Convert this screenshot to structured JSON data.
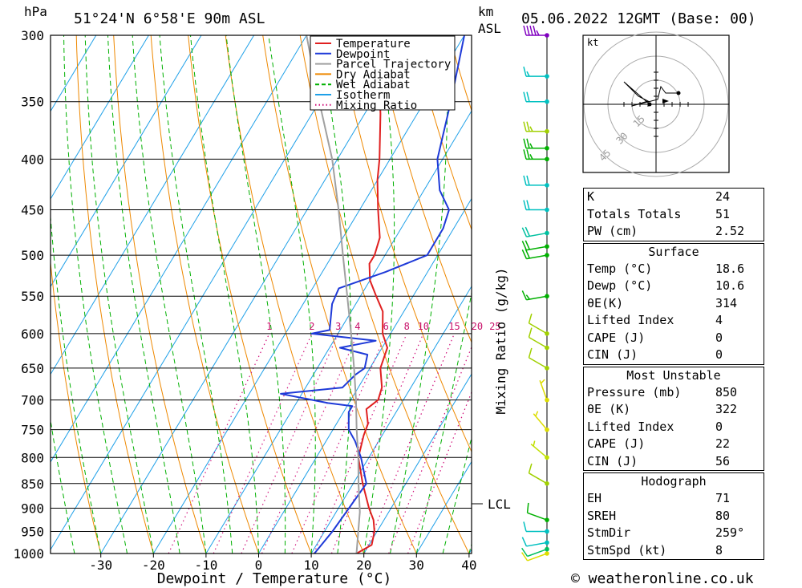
{
  "header": {
    "location": "51°24'N  6°58'E  90m  ASL",
    "datetime": "05.06.2022  12GMT  (Base: 00)",
    "hpa_label": "hPa",
    "km_label": "km",
    "asl_label": "ASL"
  },
  "footer": {
    "credit": "© weatheronline.co.uk"
  },
  "chart_data": {
    "type": "line",
    "subtype": "skew-t log-p",
    "xlabel": "Dewpoint / Temperature (°C)",
    "ylabel": "hPa",
    "right_label": "Mixing Ratio (g/kg)",
    "x_ticks": [
      -30,
      -20,
      -10,
      0,
      10,
      20,
      30,
      40
    ],
    "pressure_levels": [
      300,
      350,
      400,
      450,
      500,
      550,
      600,
      650,
      700,
      750,
      800,
      850,
      900,
      950,
      1000
    ],
    "mixing_ratio_labels": [
      "1",
      "2",
      "3",
      "4",
      "6",
      "8",
      "10",
      "15",
      "20",
      "25"
    ],
    "lcl_label": "LCL",
    "lcl_pressure": 908,
    "legend": [
      {
        "name": "Temperature",
        "color": "#e02020",
        "style": "solid"
      },
      {
        "name": "Dewpoint",
        "color": "#1e3ad8",
        "style": "solid"
      },
      {
        "name": "Parcel Trajectory",
        "color": "#a0a0a0",
        "style": "solid"
      },
      {
        "name": "Dry Adiabat",
        "color": "#ee8800",
        "style": "solid"
      },
      {
        "name": "Wet Adiabat",
        "color": "#00b000",
        "style": "dashed"
      },
      {
        "name": "Isotherm",
        "color": "#1ea0e8",
        "style": "solid"
      },
      {
        "name": "Mixing Ratio",
        "color": "#d0107a",
        "style": "dotted"
      }
    ],
    "series": [
      {
        "name": "Temperature",
        "color": "#e02020",
        "points": [
          [
            1000,
            18.6
          ],
          [
            980,
            20.5
          ],
          [
            950,
            19.5
          ],
          [
            925,
            18
          ],
          [
            900,
            15.8
          ],
          [
            850,
            11.8
          ],
          [
            800,
            8
          ],
          [
            760,
            6.5
          ],
          [
            740,
            6
          ],
          [
            715,
            4
          ],
          [
            700,
            5.2
          ],
          [
            680,
            4.5
          ],
          [
            650,
            2
          ],
          [
            620,
            1
          ],
          [
            600,
            -1.5
          ],
          [
            570,
            -4
          ],
          [
            550,
            -7
          ],
          [
            530,
            -10
          ],
          [
            510,
            -12
          ],
          [
            500,
            -12
          ],
          [
            480,
            -13
          ],
          [
            450,
            -16.5
          ],
          [
            420,
            -20
          ],
          [
            400,
            -22
          ],
          [
            360,
            -27
          ],
          [
            340,
            -30
          ],
          [
            300,
            -36
          ]
        ]
      },
      {
        "name": "Dewpoint",
        "color": "#1e3ad8",
        "points": [
          [
            1000,
            10.6
          ],
          [
            950,
            11.5
          ],
          [
            900,
            12
          ],
          [
            850,
            12.5
          ],
          [
            800,
            8.5
          ],
          [
            770,
            5.5
          ],
          [
            750,
            3
          ],
          [
            720,
            1
          ],
          [
            710,
            1
          ],
          [
            705,
            -4
          ],
          [
            690,
            -14
          ],
          [
            680,
            -3
          ],
          [
            660,
            -2
          ],
          [
            650,
            -1
          ],
          [
            630,
            -2
          ],
          [
            620,
            -8
          ],
          [
            610,
            -2
          ],
          [
            600,
            -15
          ],
          [
            595,
            -12
          ],
          [
            560,
            -14.5
          ],
          [
            540,
            -15
          ],
          [
            520,
            -8
          ],
          [
            500,
            -2
          ],
          [
            470,
            -2
          ],
          [
            450,
            -3
          ],
          [
            430,
            -7
          ],
          [
            400,
            -11
          ],
          [
            350,
            -15
          ],
          [
            300,
            -20
          ]
        ]
      },
      {
        "name": "Parcel Trajectory",
        "color": "#a0a0a0",
        "points": [
          [
            1000,
            18.6
          ],
          [
            908,
            14.5
          ],
          [
            850,
            11
          ],
          [
            800,
            8
          ],
          [
            750,
            4.5
          ],
          [
            700,
            1
          ],
          [
            650,
            -3
          ],
          [
            600,
            -7.5
          ],
          [
            550,
            -12.5
          ],
          [
            500,
            -18
          ],
          [
            450,
            -24
          ],
          [
            400,
            -31
          ],
          [
            350,
            -40
          ],
          [
            300,
            -50
          ]
        ]
      }
    ],
    "wind_barbs": [
      {
        "p": 1000,
        "dir": 250,
        "kt": 10,
        "color": "#dddd00"
      },
      {
        "p": 990,
        "dir": 250,
        "kt": 10,
        "color": "#00c060"
      },
      {
        "p": 975,
        "dir": 260,
        "kt": 10,
        "color": "#00c0c0"
      },
      {
        "p": 950,
        "dir": 270,
        "kt": 10,
        "color": "#00c0c0"
      },
      {
        "p": 925,
        "dir": 290,
        "kt": 10,
        "color": "#00b000"
      },
      {
        "p": 850,
        "dir": 300,
        "kt": 10,
        "color": "#a0d000"
      },
      {
        "p": 800,
        "dir": 310,
        "kt": 5,
        "color": "#c0e000"
      },
      {
        "p": 750,
        "dir": 320,
        "kt": 5,
        "color": "#dddd00"
      },
      {
        "p": 700,
        "dir": 340,
        "kt": 5,
        "color": "#dddd00"
      },
      {
        "p": 650,
        "dir": 300,
        "kt": 10,
        "color": "#a0d000"
      },
      {
        "p": 620,
        "dir": 300,
        "kt": 10,
        "color": "#a0d000"
      },
      {
        "p": 600,
        "dir": 300,
        "kt": 10,
        "color": "#a0d000"
      },
      {
        "p": 550,
        "dir": 260,
        "kt": 15,
        "color": "#00b000"
      },
      {
        "p": 500,
        "dir": 260,
        "kt": 20,
        "color": "#00b000"
      },
      {
        "p": 490,
        "dir": 260,
        "kt": 20,
        "color": "#00b000"
      },
      {
        "p": 475,
        "dir": 260,
        "kt": 20,
        "color": "#00c0a0"
      },
      {
        "p": 450,
        "dir": 270,
        "kt": 20,
        "color": "#00c0c0"
      },
      {
        "p": 425,
        "dir": 270,
        "kt": 20,
        "color": "#00c0c0"
      },
      {
        "p": 400,
        "dir": 270,
        "kt": 25,
        "color": "#00b000"
      },
      {
        "p": 390,
        "dir": 270,
        "kt": 25,
        "color": "#00b000"
      },
      {
        "p": 375,
        "dir": 270,
        "kt": 25,
        "color": "#a0d000"
      },
      {
        "p": 350,
        "dir": 270,
        "kt": 20,
        "color": "#00c0c0"
      },
      {
        "p": 330,
        "dir": 270,
        "kt": 15,
        "color": "#00c0c0"
      },
      {
        "p": 300,
        "dir": 270,
        "kt": 45,
        "color": "#8000c0"
      }
    ],
    "hodograph": {
      "unit_label": "kt",
      "ring_labels": [
        "15",
        "30",
        "45"
      ],
      "points": [
        [
          1,
          0
        ],
        [
          -0.5,
          1
        ],
        [
          2,
          -2
        ],
        [
          4,
          -3
        ],
        [
          8,
          -2
        ],
        [
          12,
          -1
        ],
        [
          10,
          4
        ],
        [
          14,
          3
        ],
        [
          16,
          5
        ],
        [
          18,
          6
        ]
      ]
    }
  },
  "indices": [
    {
      "label": "K",
      "value": "24"
    },
    {
      "label": "Totals Totals",
      "value": "51"
    },
    {
      "label": "PW (cm)",
      "value": "2.52"
    }
  ],
  "surface": {
    "title": "Surface",
    "rows": [
      {
        "label": "Temp (°C)",
        "value": "18.6"
      },
      {
        "label": "Dewp (°C)",
        "value": "10.6"
      },
      {
        "label": "θE(K)",
        "value": "314"
      },
      {
        "label": "Lifted Index",
        "value": "4"
      },
      {
        "label": "CAPE (J)",
        "value": "0"
      },
      {
        "label": "CIN (J)",
        "value": "0"
      }
    ]
  },
  "most_unstable": {
    "title": "Most Unstable",
    "rows": [
      {
        "label": "Pressure (mb)",
        "value": "850"
      },
      {
        "label": "θE (K)",
        "value": "322"
      },
      {
        "label": "Lifted Index",
        "value": "0"
      },
      {
        "label": "CAPE (J)",
        "value": "22"
      },
      {
        "label": "CIN (J)",
        "value": "56"
      }
    ]
  },
  "hodograph_table": {
    "title": "Hodograph",
    "rows": [
      {
        "label": "EH",
        "value": "71"
      },
      {
        "label": "SREH",
        "value": "80"
      },
      {
        "label": "StmDir",
        "value": "259°"
      },
      {
        "label": "StmSpd (kt)",
        "value": "8"
      }
    ]
  }
}
